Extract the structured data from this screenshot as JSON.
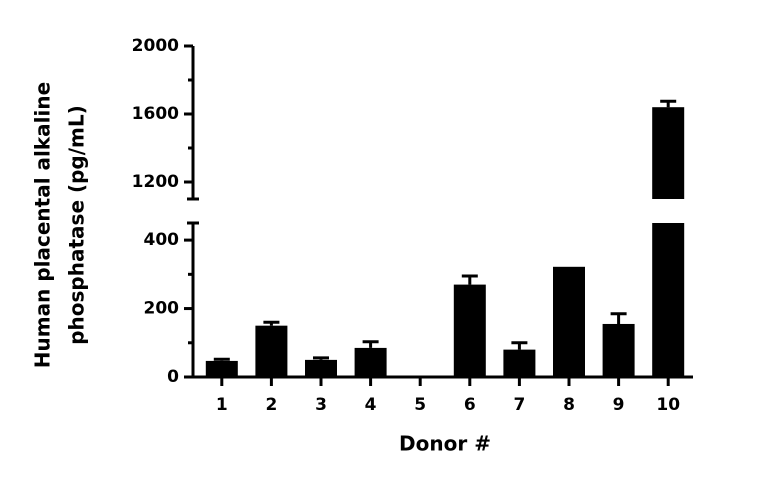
{
  "chart_data": {
    "type": "bar",
    "xlabel": "Donor #",
    "ylabel": [
      "Human placental alkaline",
      "phosphatase (pg/mL)"
    ],
    "categories": [
      "1",
      "2",
      "3",
      "4",
      "5",
      "6",
      "7",
      "8",
      "9",
      "10"
    ],
    "values": [
      47,
      150,
      50,
      85,
      0,
      270,
      80,
      322,
      155,
      1640
    ],
    "errors": [
      5,
      10,
      6,
      18,
      0,
      25,
      20,
      0,
      30,
      35
    ],
    "color": "#000000",
    "y_segments": [
      {
        "ylim": [
          0,
          450
        ],
        "yticks": [
          0,
          200,
          400
        ],
        "yminorticks": [
          100,
          300
        ]
      },
      {
        "ylim": [
          1100,
          2000
        ],
        "yticks": [
          1200,
          1600,
          2000
        ],
        "yminorticks": [
          1400,
          1800
        ]
      }
    ]
  }
}
